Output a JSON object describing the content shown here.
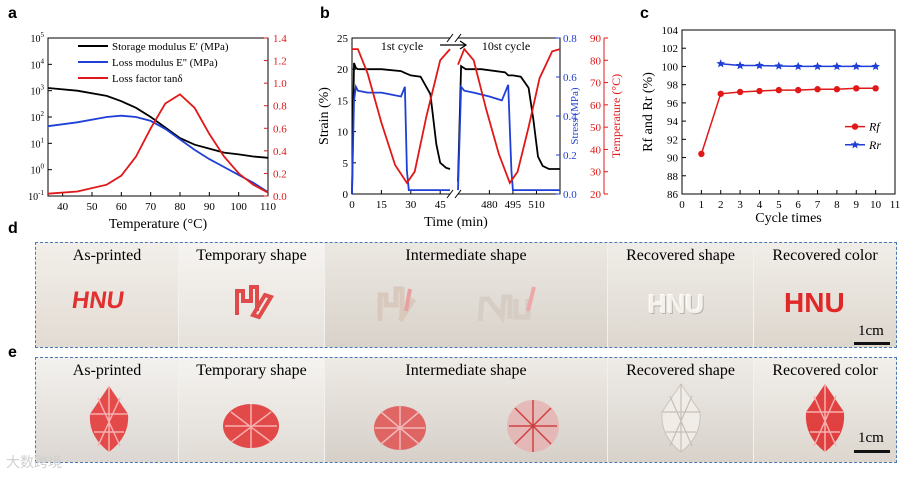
{
  "panel_labels": {
    "a": "a",
    "b": "b",
    "c": "c",
    "d": "d",
    "e": "e"
  },
  "chart_data": [
    {
      "id": "a",
      "type": "line",
      "xlabel": "Temperature (°C)",
      "ylabel_left": "",
      "ylabel_right": "",
      "xlim": [
        35,
        110
      ],
      "ylim_left_log10": [
        -1,
        5
      ],
      "ylim_right": [
        0.0,
        1.4
      ],
      "x_ticks": [
        "40",
        "50",
        "60",
        "70",
        "80",
        "90",
        "100",
        "110"
      ],
      "y_ticks_left": [
        "10^-1",
        "10^0",
        "10^1",
        "10^2",
        "10^3",
        "10^4",
        "10^5"
      ],
      "y_ticks_right": [
        "0.0",
        "0.2",
        "0.4",
        "0.6",
        "0.8",
        "1.0",
        "1.2",
        "1.4"
      ],
      "legend": [
        {
          "label": "Storage modulus E' (MPa)",
          "color": "#000000"
        },
        {
          "label": "Loss modulus E'' (MPa)",
          "color": "#1f3fd6"
        },
        {
          "label": "Loss factor tanδ",
          "color": "#e01818"
        }
      ],
      "series": [
        {
          "name": "Storage modulus E' (MPa)",
          "axis": "left_log10",
          "color": "#000000",
          "x": [
            35,
            45,
            55,
            60,
            65,
            70,
            75,
            80,
            85,
            90,
            95,
            100,
            105,
            110
          ],
          "y": [
            3.1,
            3.0,
            2.8,
            2.6,
            2.35,
            2.0,
            1.6,
            1.2,
            0.95,
            0.8,
            0.65,
            0.58,
            0.5,
            0.45
          ]
        },
        {
          "name": "Loss modulus E'' (MPa)",
          "axis": "left_log10",
          "color": "#1f3fd6",
          "x": [
            35,
            45,
            55,
            60,
            65,
            70,
            75,
            80,
            85,
            90,
            95,
            100,
            105,
            110
          ],
          "y": [
            1.65,
            1.8,
            2.0,
            2.05,
            2.0,
            1.85,
            1.55,
            1.15,
            0.75,
            0.4,
            0.1,
            -0.2,
            -0.5,
            -0.85
          ]
        },
        {
          "name": "Loss factor tanδ",
          "axis": "right",
          "color": "#e01818",
          "x": [
            35,
            45,
            55,
            60,
            65,
            70,
            75,
            80,
            85,
            90,
            95,
            100,
            105,
            110
          ],
          "y": [
            0.02,
            0.04,
            0.1,
            0.18,
            0.35,
            0.6,
            0.82,
            0.9,
            0.78,
            0.55,
            0.35,
            0.2,
            0.1,
            0.03
          ]
        }
      ]
    },
    {
      "id": "b",
      "type": "line",
      "xlabel": "Time (min)",
      "ylabel": "Strain (%)",
      "ylabel_right1": "Stress (MPa)",
      "ylabel_right2": "Temperature (°C)",
      "annotations": [
        "1st cycle",
        "10st cycle"
      ],
      "segment1_xlim": [
        0,
        50
      ],
      "segment2_xlim": [
        460,
        525
      ],
      "x_ticks_1": [
        "0",
        "15",
        "30",
        "45"
      ],
      "x_ticks_2": [
        "480",
        "495",
        "510"
      ],
      "ylim_strain": [
        0,
        25
      ],
      "y_ticks_strain": [
        "0",
        "5",
        "10",
        "15",
        "20",
        "25"
      ],
      "ylim_stress": [
        0,
        0.8
      ],
      "y_ticks_stress": [
        "0.0",
        "0.2",
        "0.4",
        "0.6",
        "0.8"
      ],
      "ylim_temp": [
        20,
        90
      ],
      "y_ticks_temp": [
        "20",
        "30",
        "40",
        "50",
        "60",
        "70",
        "80",
        "90"
      ],
      "series": [
        {
          "name": "Strain",
          "color": "#000000",
          "seg1": {
            "x": [
              0,
              1,
              2,
              3,
              5,
              15,
              25,
              27,
              30,
              35,
              40,
              43,
              45,
              48,
              50
            ],
            "y": [
              0,
              21,
              20.2,
              20,
              20,
              20,
              19.7,
              19.4,
              19,
              18.8,
              16,
              8,
              5,
              4.2,
              4
            ]
          },
          "seg2": {
            "x": [
              460,
              462,
              465,
              475,
              490,
              492,
              495,
              500,
              505,
              508,
              511,
              514,
              518,
              525
            ],
            "y": [
              2,
              20.5,
              20,
              20,
              19.5,
              19,
              19,
              18.8,
              17,
              12,
              6,
              4.5,
              4,
              4
            ]
          }
        },
        {
          "name": "Stress",
          "color": "#1f3fd6",
          "seg1": {
            "x": [
              0,
              1,
              2,
              3,
              8,
              15,
              25,
              27,
              28,
              29,
              50
            ],
            "y": [
              0,
              0.48,
              0.55,
              0.53,
              0.52,
              0.52,
              0.5,
              0.55,
              0.12,
              0.02,
              0.02
            ]
          },
          "seg2": {
            "x": [
              460,
              462,
              464,
              470,
              480,
              488,
              492,
              494,
              495,
              525
            ],
            "y": [
              0.02,
              0.55,
              0.53,
              0.52,
              0.5,
              0.48,
              0.56,
              0.12,
              0.02,
              0.02
            ]
          }
        },
        {
          "name": "Temperature",
          "color": "#e01818",
          "seg1": {
            "x": [
              0,
              3,
              8,
              15,
              22,
              28,
              32,
              38,
              45,
              50
            ],
            "y": [
              85,
              85,
              74,
              52,
              33,
              25,
              30,
              55,
              80,
              85
            ]
          },
          "seg2": {
            "x": [
              460,
              464,
              470,
              478,
              486,
              493,
              498,
              505,
              512,
              520,
              525
            ],
            "y": [
              78,
              85,
              80,
              58,
              38,
              25,
              30,
              50,
              72,
              84,
              85
            ]
          }
        }
      ]
    },
    {
      "id": "c",
      "type": "line",
      "xlabel": "Cycle times",
      "ylabel": "Rf and Rr (%)",
      "xlim": [
        0,
        11
      ],
      "ylim": [
        86,
        104
      ],
      "x_ticks": [
        "0",
        "1",
        "2",
        "3",
        "4",
        "5",
        "6",
        "7",
        "8",
        "9",
        "10",
        "11"
      ],
      "y_ticks": [
        "86",
        "88",
        "90",
        "92",
        "94",
        "96",
        "98",
        "100",
        "102",
        "104"
      ],
      "legend": [
        {
          "label": "Rf",
          "color": "#e01818",
          "marker": "circle"
        },
        {
          "label": "Rr",
          "color": "#1f3fd6",
          "marker": "star"
        }
      ],
      "series": [
        {
          "name": "Rf",
          "color": "#e01818",
          "marker": "circle",
          "x": [
            1,
            2,
            3,
            4,
            5,
            6,
            7,
            8,
            9,
            10
          ],
          "y": [
            90.4,
            97.0,
            97.2,
            97.3,
            97.4,
            97.4,
            97.5,
            97.5,
            97.6,
            97.6
          ]
        },
        {
          "name": "Rr",
          "color": "#1f3fd6",
          "marker": "star",
          "x": [
            2,
            3,
            4,
            5,
            6,
            7,
            8,
            9,
            10
          ],
          "y": [
            100.3,
            100.1,
            100.1,
            100.05,
            100.0,
            100.0,
            100.0,
            100.0,
            100.0
          ]
        }
      ]
    }
  ],
  "row_d": {
    "captions": [
      "As-printed",
      "Temporary shape",
      "Intermediate shape",
      "Recovered shape",
      "Recovered color"
    ],
    "object_text": "HNU",
    "scale": "1cm"
  },
  "row_e": {
    "captions": [
      "As-printed",
      "Temporary shape",
      "Intermediate shape",
      "Recovered shape",
      "Recovered color"
    ],
    "scale": "1cm"
  },
  "watermark": "大数跨境",
  "colors": {
    "red": "#e01818",
    "blue": "#1f3fd6",
    "border": "#4a78b5"
  }
}
